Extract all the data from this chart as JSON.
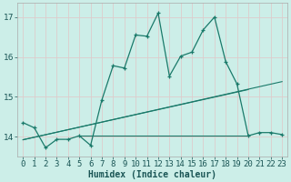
{
  "title": "",
  "xlabel": "Humidex (Indice chaleur)",
  "bg_color": "#cceee8",
  "grid_color": "#ddcccc",
  "line_color": "#1a7a6a",
  "xlim": [
    -0.5,
    23.5
  ],
  "ylim": [
    13.5,
    17.35
  ],
  "yticks": [
    14,
    15,
    16,
    17
  ],
  "xticks": [
    0,
    1,
    2,
    3,
    4,
    5,
    6,
    7,
    8,
    9,
    10,
    11,
    12,
    13,
    14,
    15,
    16,
    17,
    18,
    19,
    20,
    21,
    22,
    23
  ],
  "curve_x": [
    0,
    1,
    2,
    3,
    4,
    5,
    6,
    7,
    8,
    9,
    10,
    11,
    12,
    13,
    14,
    15,
    16,
    17,
    18,
    19,
    20,
    21,
    22,
    23
  ],
  "curve_y": [
    14.35,
    14.22,
    13.72,
    13.93,
    13.93,
    14.02,
    13.78,
    14.92,
    15.78,
    15.72,
    16.55,
    16.52,
    17.1,
    15.52,
    16.02,
    16.12,
    16.68,
    17.0,
    15.88,
    15.32,
    14.02,
    14.1,
    14.1,
    14.05
  ],
  "line1_x": [
    0,
    23
  ],
  "line1_y": [
    13.92,
    15.38
  ],
  "line2_x": [
    0,
    20
  ],
  "line2_y": [
    13.92,
    15.18
  ],
  "hline_x": [
    5,
    20
  ],
  "hline_y": [
    14.02,
    14.02
  ],
  "font_size_label": 7,
  "font_size_tick": 6.5
}
